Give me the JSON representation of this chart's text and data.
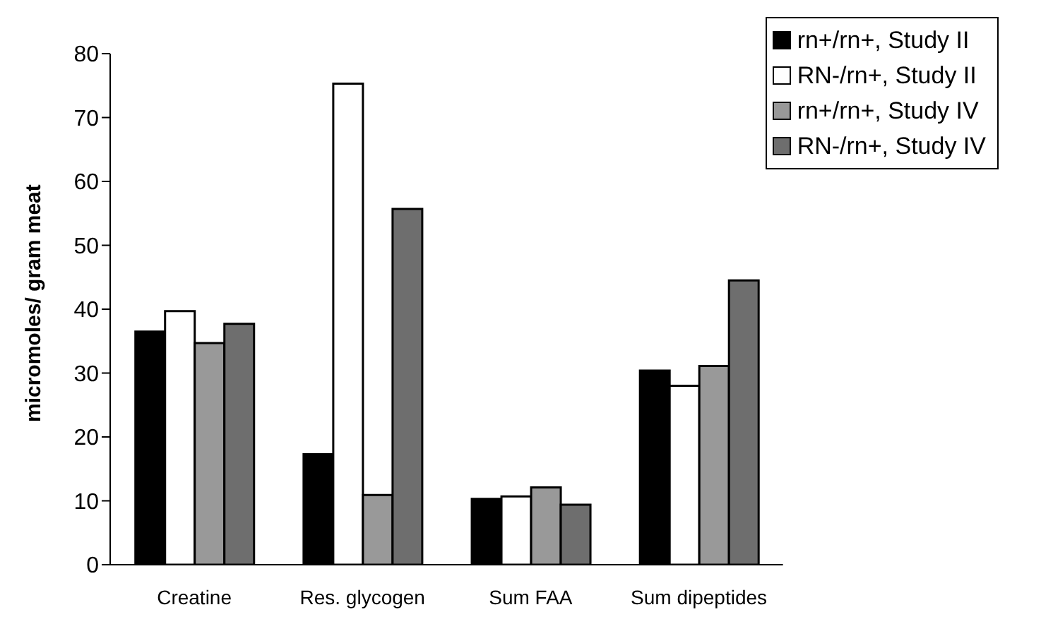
{
  "chart_data": {
    "type": "bar",
    "ylabel": "micromoles/ gram meat",
    "categories": [
      "Creatine",
      "Res. glycogen",
      "Sum FAA",
      "Sum dipeptides"
    ],
    "series": [
      {
        "name": "rn+/rn+, Study II",
        "color": "#000000",
        "values": [
          36.5,
          17.3,
          10.3,
          30.4
        ]
      },
      {
        "name": "RN-/rn+, Study II",
        "color": "#ffffff",
        "values": [
          39.7,
          75.3,
          10.7,
          28.0
        ]
      },
      {
        "name": "rn+/rn+, Study IV",
        "color": "#999999",
        "values": [
          34.7,
          10.9,
          12.1,
          31.1
        ]
      },
      {
        "name": "RN-/rn+, Study IV",
        "color": "#6e6e6e",
        "values": [
          37.7,
          55.7,
          9.4,
          44.5
        ]
      }
    ],
    "ylim": [
      0,
      80
    ],
    "yticks": [
      0,
      10,
      20,
      30,
      40,
      50,
      60,
      70,
      80
    ],
    "grid": false,
    "legend": "top right"
  }
}
